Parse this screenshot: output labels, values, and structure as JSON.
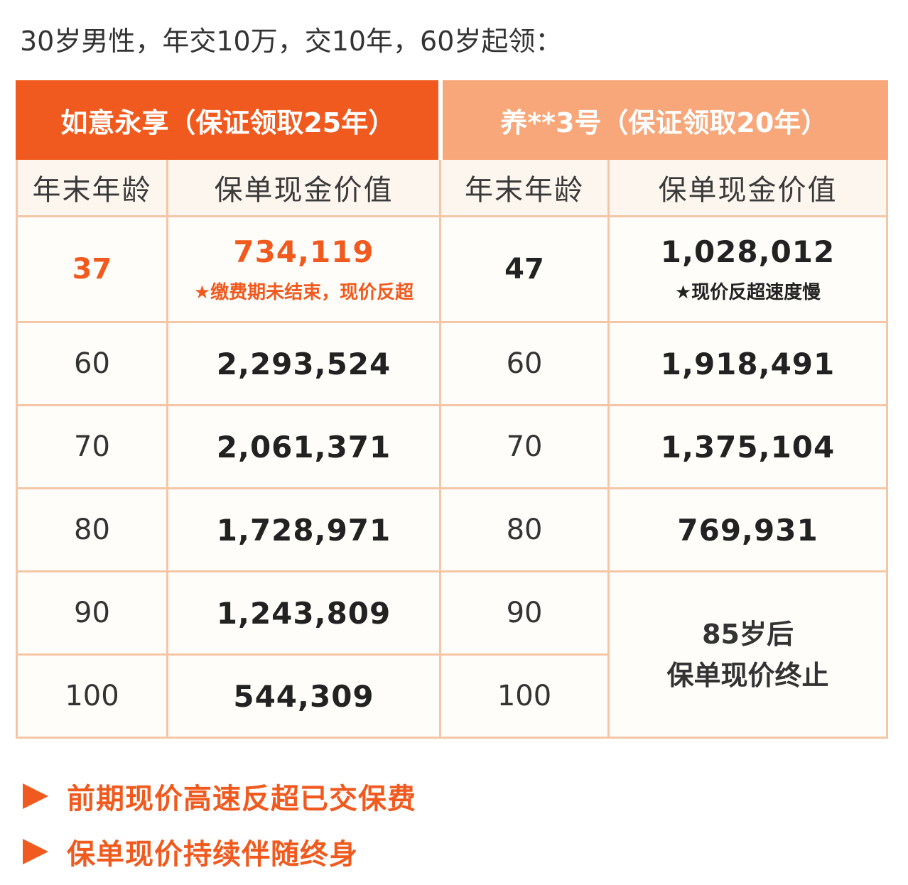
{
  "heading": "30岁男性，年交10万，交10年，60岁起领：",
  "plans": [
    {
      "name": "如意永享（保证领取25年）"
    },
    {
      "name": "养**3号（保证领取20年）"
    }
  ],
  "columns": {
    "age": "年末年龄",
    "cash_value": "保单现金价值"
  },
  "first_row": {
    "plan_a": {
      "age": "37",
      "value": "734,119",
      "note": "★缴费期未结束，现价反超"
    },
    "plan_b": {
      "age": "47",
      "value": "1,028,012",
      "note": "★现价反超速度慢"
    }
  },
  "rows": [
    {
      "a_age": "60",
      "a_value": "2,293,524",
      "b_age": "60",
      "b_value": "1,918,491"
    },
    {
      "a_age": "70",
      "a_value": "2,061,371",
      "b_age": "70",
      "b_value": "1,375,104"
    },
    {
      "a_age": "80",
      "a_value": "1,728,971",
      "b_age": "80",
      "b_value": "769,931"
    },
    {
      "a_age": "90",
      "a_value": "1,243,809",
      "b_age": "90"
    },
    {
      "a_age": "100",
      "a_value": "544,309",
      "b_age": "100"
    }
  ],
  "terminated_note": {
    "line1": "85岁后",
    "line2": "保单现价终止"
  },
  "bullets": [
    "前期现价高速反超已交保费",
    "保单现价持续伴随终身"
  ],
  "colors": {
    "accent": "#f05a1f",
    "accent_light": "#f7a779",
    "border": "#f5c6a5",
    "header_bg": "#fcf6ee"
  },
  "icons": {
    "bullet": "arrow-right-icon"
  }
}
